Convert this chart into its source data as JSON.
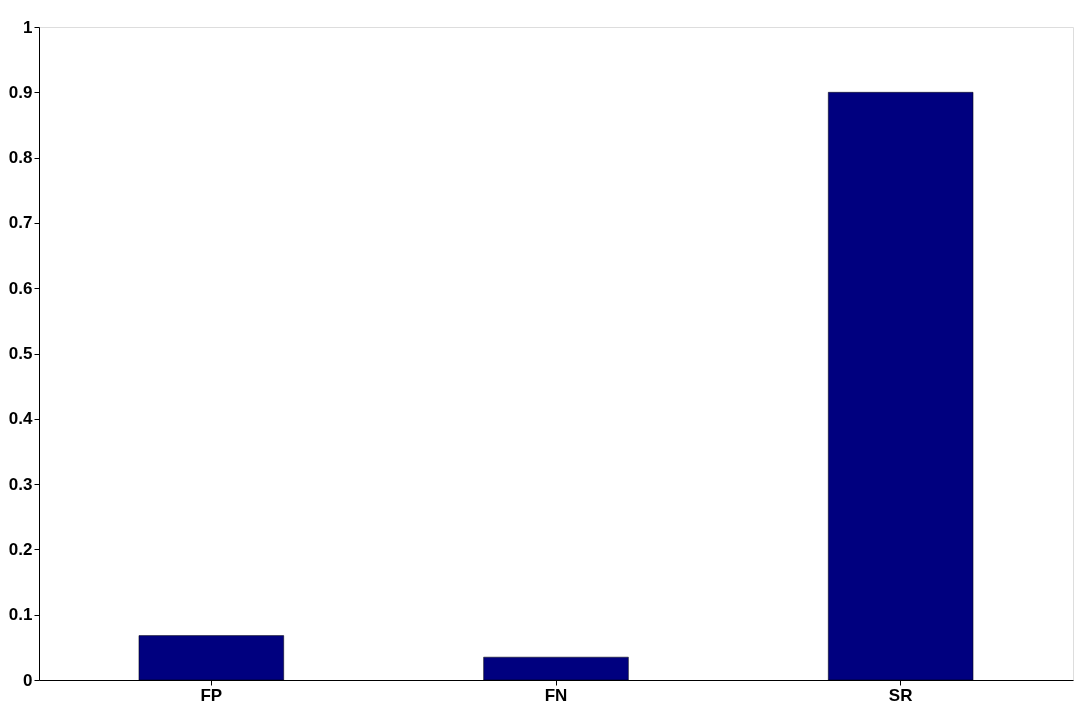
{
  "chart_data": {
    "type": "bar",
    "categories": [
      "FP",
      "FN",
      "SR"
    ],
    "values": [
      0.068,
      0.035,
      0.9
    ],
    "color": "#00007f",
    "ylim": [
      0,
      1
    ],
    "yticks": [
      0,
      0.1,
      0.2,
      0.3,
      0.4,
      0.5,
      0.6,
      0.7,
      0.8,
      0.9,
      1
    ],
    "grid": false
  }
}
